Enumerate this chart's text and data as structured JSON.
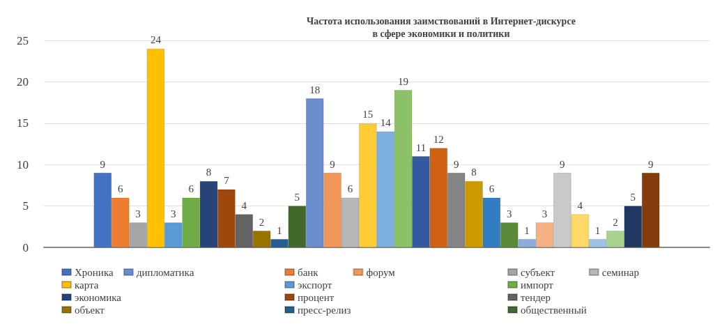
{
  "chart_data": {
    "type": "bar",
    "title": "Частота использования заимствований в Интернет-дискурсе\nв сфере экономики и политики",
    "categories": [
      null
    ],
    "ylim": [
      0,
      25
    ],
    "yticks": [
      0,
      5,
      10,
      15,
      20,
      25
    ],
    "grid": "y",
    "legend": "bottom",
    "data_labels": true,
    "series": [
      {
        "name": "Хроника",
        "color": "#4472c4",
        "values": [
          9
        ]
      },
      {
        "name": "банк",
        "color": "#ed7d31",
        "values": [
          6
        ]
      },
      {
        "name": "субъект",
        "color": "#a5a5a5",
        "values": [
          3
        ]
      },
      {
        "name": "карта",
        "color": "#ffc000",
        "values": [
          24
        ]
      },
      {
        "name": "экспорт",
        "color": "#5b9bd5",
        "values": [
          3
        ]
      },
      {
        "name": "импорт",
        "color": "#70ad47",
        "values": [
          6
        ]
      },
      {
        "name": "экономика",
        "color": "#264478",
        "values": [
          8
        ]
      },
      {
        "name": "процент",
        "color": "#9e480e",
        "values": [
          7
        ]
      },
      {
        "name": "тендер",
        "color": "#636363",
        "values": [
          4
        ]
      },
      {
        "name": "объект",
        "color": "#997300",
        "values": [
          2
        ]
      },
      {
        "name": "пресс-релиз",
        "color": "#255e91",
        "values": [
          1
        ]
      },
      {
        "name": "общественный",
        "color": "#43682b",
        "values": [
          5
        ]
      },
      {
        "name": "дипломатика",
        "color": "#698ed0",
        "values": [
          18
        ]
      },
      {
        "name": "форум",
        "color": "#f1975a",
        "values": [
          9
        ]
      },
      {
        "name": "семинар",
        "color": "#b7b7b7",
        "values": [
          6
        ]
      },
      {
        "color": "#ffcd33",
        "values": [
          15
        ]
      },
      {
        "color": "#7cafdd",
        "values": [
          14
        ]
      },
      {
        "color": "#8cc168",
        "values": [
          19
        ]
      },
      {
        "color": "#335aa1",
        "values": [
          11
        ]
      },
      {
        "color": "#d26012",
        "values": [
          12
        ]
      },
      {
        "color": "#848484",
        "values": [
          9
        ]
      },
      {
        "color": "#cc9a00",
        "values": [
          8
        ]
      },
      {
        "color": "#327dc2",
        "values": [
          6
        ]
      },
      {
        "color": "#5a8a39",
        "values": [
          3
        ]
      },
      {
        "color": "#8faadc",
        "values": [
          1
        ]
      },
      {
        "color": "#f4b183",
        "values": [
          3
        ]
      },
      {
        "color": "#c9c9c9",
        "values": [
          9
        ]
      },
      {
        "color": "#ffd966",
        "values": [
          4
        ]
      },
      {
        "color": "#9dc3e6",
        "values": [
          1
        ]
      },
      {
        "color": "#a9d18e",
        "values": [
          2
        ]
      },
      {
        "color": "#203864",
        "values": [
          5
        ]
      },
      {
        "color": "#843c0c",
        "values": [
          9
        ]
      }
    ]
  }
}
